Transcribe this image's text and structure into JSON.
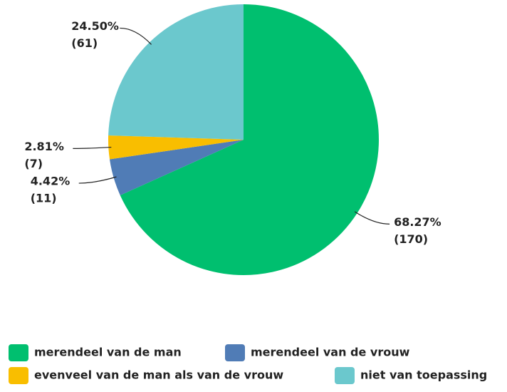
{
  "chart_data": {
    "type": "pie",
    "categories": [
      "merendeel van de man",
      "merendeel van de vrouw",
      "evenveel van de man als van de vrouw",
      "niet van toepassing"
    ],
    "values": [
      68.27,
      4.42,
      2.81,
      24.5
    ],
    "value_labels": [
      "68.27%",
      "4.42%",
      "2.81%",
      "24.50%"
    ],
    "counts": [
      170,
      11,
      7,
      61
    ],
    "count_labels": [
      "(170)",
      "(11)",
      "(7)",
      "(61)"
    ],
    "colors": [
      "#00bf6f",
      "#507cb6",
      "#f9be00",
      "#6bc8cd"
    ],
    "legend": "bottom"
  }
}
